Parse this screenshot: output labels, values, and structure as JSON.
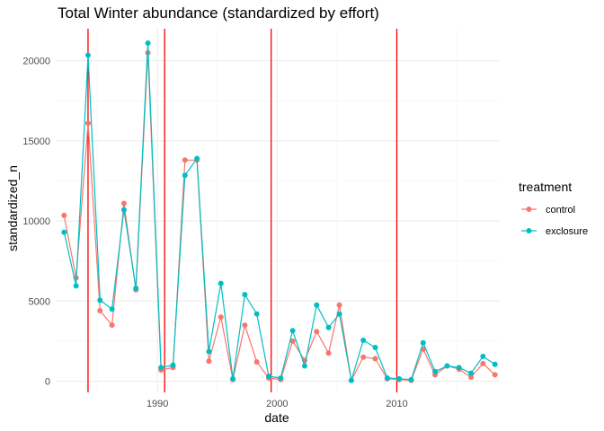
{
  "chart_data": {
    "type": "line",
    "title": "Total Winter abundance (standardized by effort)",
    "xlabel": "date",
    "ylabel": "standardized_n",
    "xlim": [
      1981.5,
      2018.6
    ],
    "ylim": [
      -700,
      22000
    ],
    "x_ticks": [
      1990,
      2000,
      2010
    ],
    "y_ticks": [
      0,
      5000,
      10000,
      15000,
      20000
    ],
    "grid": true,
    "legend": {
      "title": "treatment",
      "position": "right"
    },
    "vlines": {
      "color": "#ff0000",
      "x": [
        1984.2,
        1990.6,
        1999.5,
        2010.0
      ]
    },
    "series": [
      {
        "name": "control",
        "color": "#F8766D",
        "points": [
          [
            1982.2,
            10350
          ],
          [
            1983.2,
            6450
          ],
          [
            1984.2,
            16100
          ],
          [
            1985.2,
            4400
          ],
          [
            1986.2,
            3500
          ],
          [
            1987.2,
            11100
          ],
          [
            1988.2,
            5700
          ],
          [
            1989.2,
            20500
          ],
          [
            1990.3,
            700
          ],
          [
            1991.3,
            850
          ],
          [
            1992.3,
            13800
          ],
          [
            1993.3,
            13800
          ],
          [
            1994.3,
            1250
          ],
          [
            1995.3,
            4000
          ],
          [
            1996.3,
            100
          ],
          [
            1997.3,
            3500
          ],
          [
            1998.3,
            1200
          ],
          [
            1999.3,
            200
          ],
          [
            2000.3,
            100
          ],
          [
            2001.3,
            2500
          ],
          [
            2002.3,
            1300
          ],
          [
            2003.3,
            3100
          ],
          [
            2004.3,
            1750
          ],
          [
            2005.2,
            4750
          ],
          [
            2006.2,
            50
          ],
          [
            2007.2,
            1500
          ],
          [
            2008.2,
            1400
          ],
          [
            2009.2,
            150
          ],
          [
            2010.2,
            100
          ],
          [
            2011.2,
            50
          ],
          [
            2012.2,
            2000
          ],
          [
            2013.2,
            400
          ],
          [
            2014.2,
            950
          ],
          [
            2015.2,
            750
          ],
          [
            2016.2,
            250
          ],
          [
            2017.2,
            1100
          ],
          [
            2018.2,
            400
          ]
        ]
      },
      {
        "name": "exclosure",
        "color": "#00BFC4",
        "points": [
          [
            1982.2,
            9300
          ],
          [
            1983.2,
            5950
          ],
          [
            1984.2,
            20350
          ],
          [
            1985.2,
            5050
          ],
          [
            1986.2,
            4500
          ],
          [
            1987.2,
            10700
          ],
          [
            1988.2,
            5800
          ],
          [
            1989.2,
            21100
          ],
          [
            1990.3,
            850
          ],
          [
            1991.3,
            1000
          ],
          [
            1992.3,
            12850
          ],
          [
            1993.3,
            13900
          ],
          [
            1994.3,
            1850
          ],
          [
            1995.3,
            6100
          ],
          [
            1996.3,
            150
          ],
          [
            1997.3,
            5400
          ],
          [
            1998.3,
            4200
          ],
          [
            1999.3,
            300
          ],
          [
            2000.3,
            200
          ],
          [
            2001.3,
            3150
          ],
          [
            2002.3,
            950
          ],
          [
            2003.3,
            4750
          ],
          [
            2004.3,
            3350
          ],
          [
            2005.2,
            4200
          ],
          [
            2006.2,
            50
          ],
          [
            2007.2,
            2550
          ],
          [
            2008.2,
            2100
          ],
          [
            2009.2,
            200
          ],
          [
            2010.2,
            150
          ],
          [
            2011.2,
            100
          ],
          [
            2012.2,
            2400
          ],
          [
            2013.2,
            600
          ],
          [
            2014.2,
            950
          ],
          [
            2015.2,
            850
          ],
          [
            2016.2,
            500
          ],
          [
            2017.2,
            1550
          ],
          [
            2018.2,
            1050
          ]
        ]
      }
    ]
  }
}
